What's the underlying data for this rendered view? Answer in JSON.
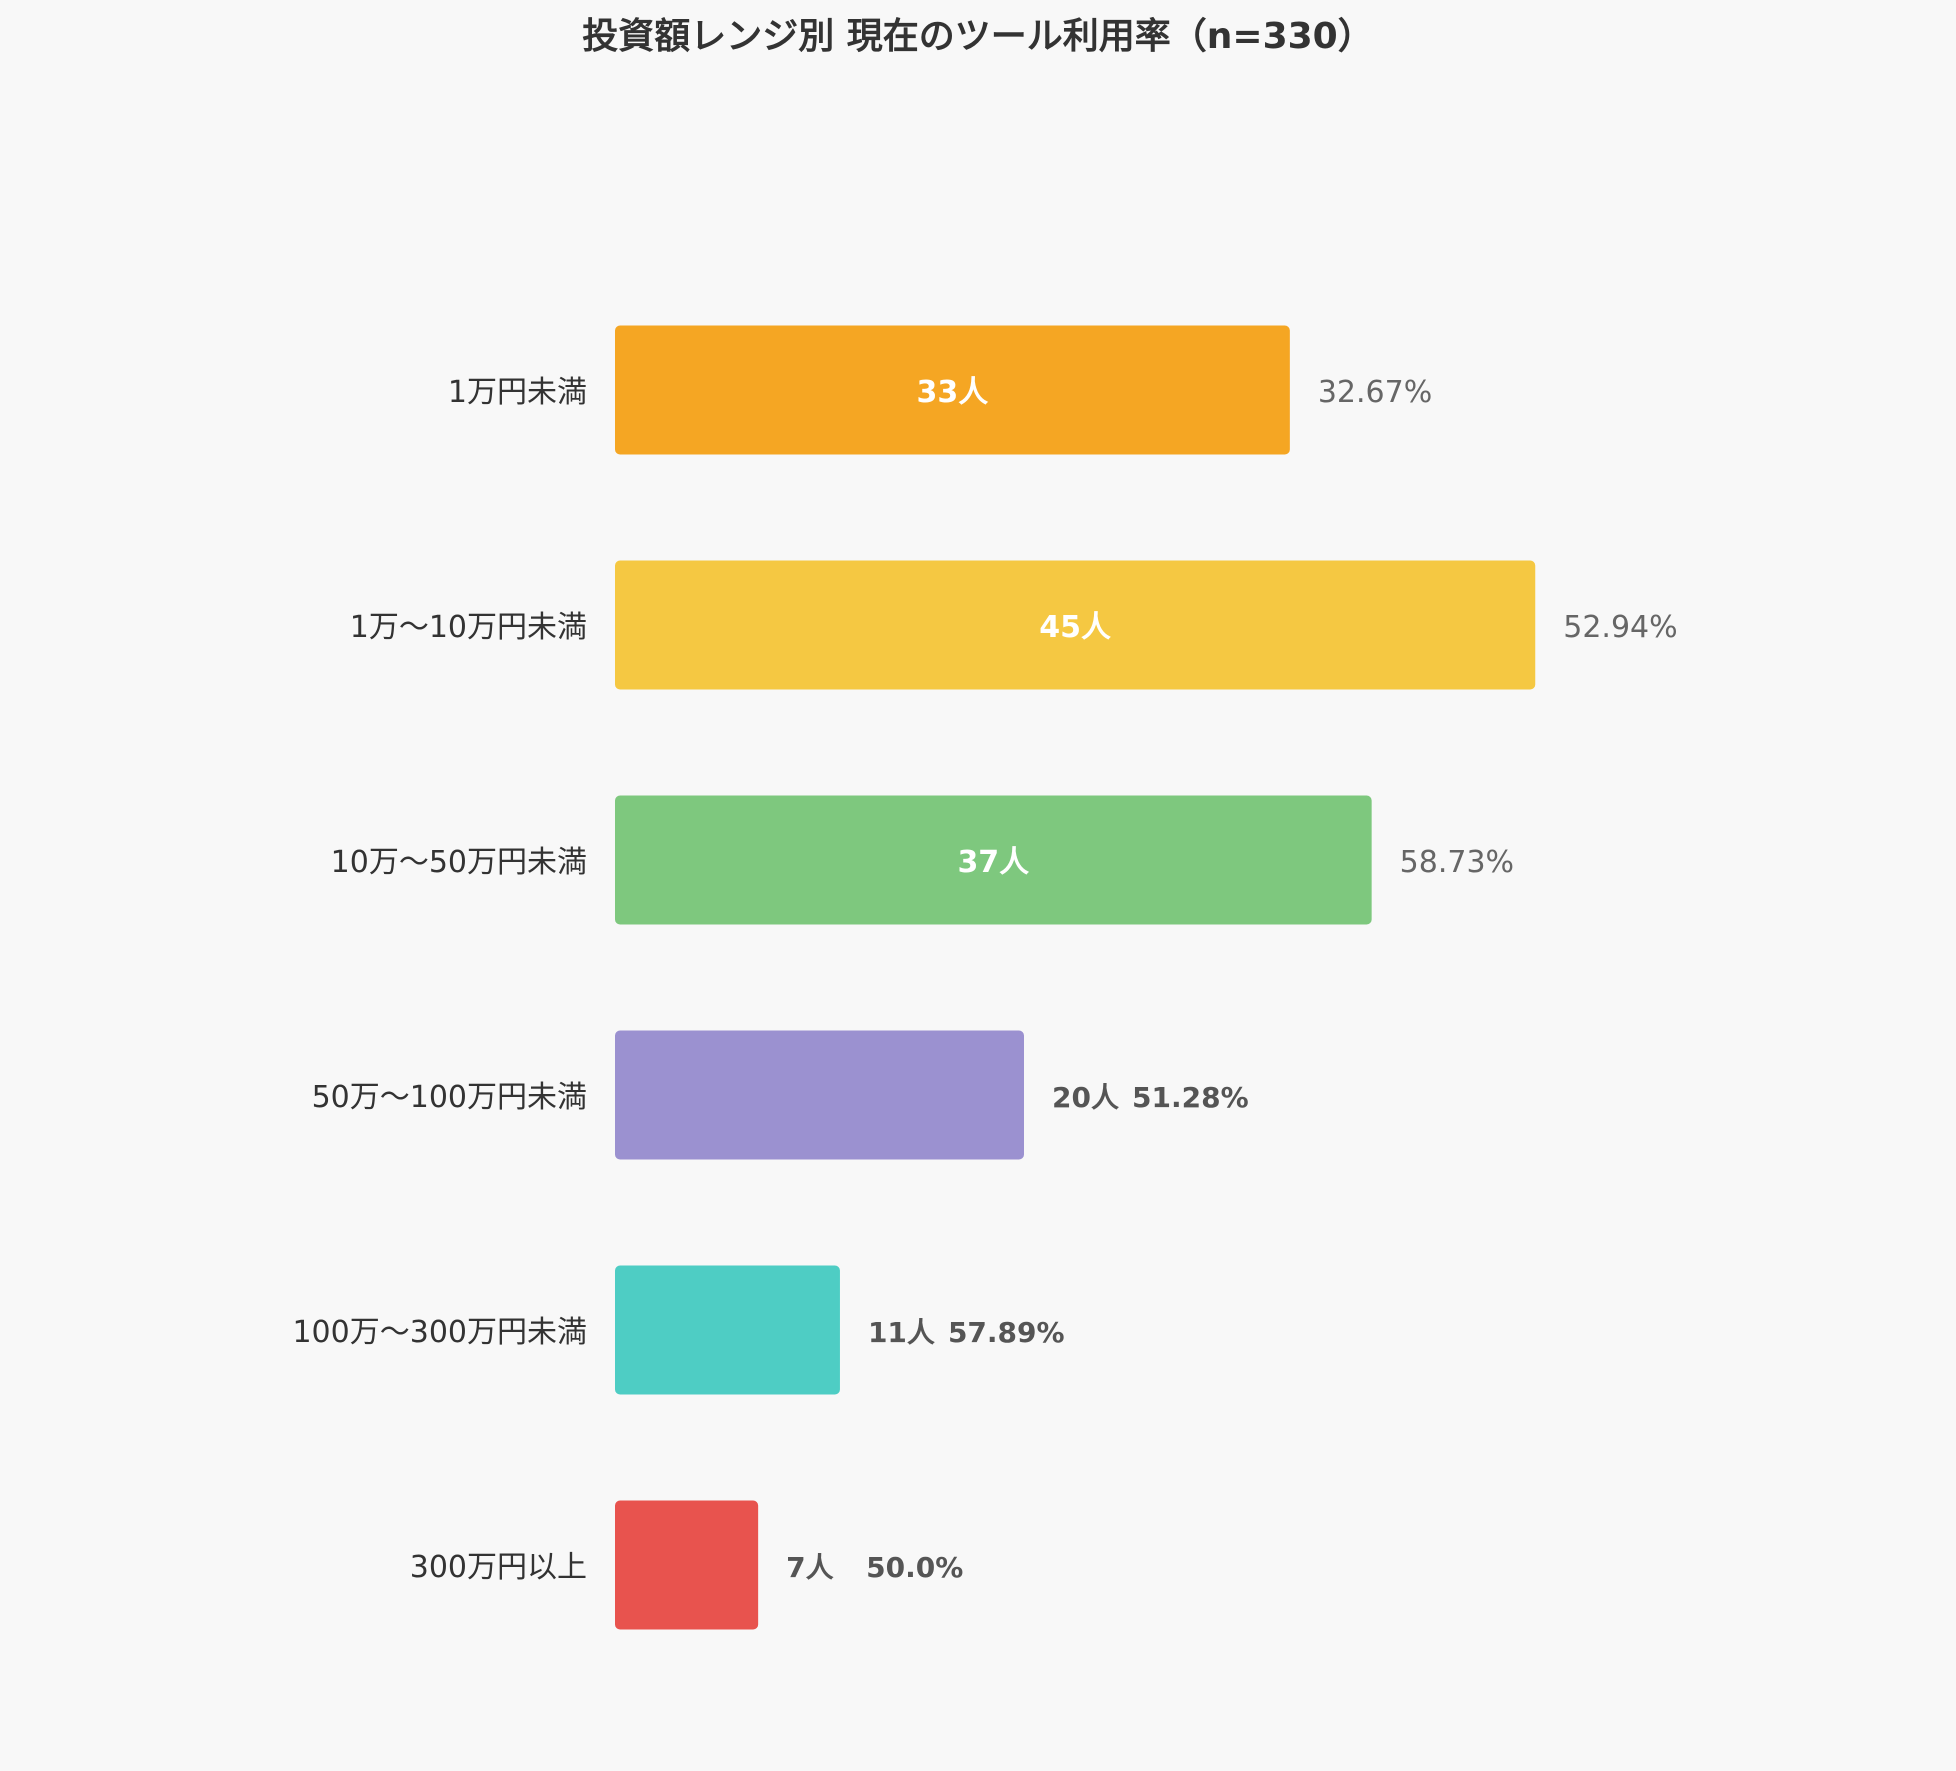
{
  "chart_data": {
    "type": "bar",
    "orientation": "horizontal",
    "title": "投資額レンジ別 現在のツール利用率（n=330）",
    "xlabel": "",
    "ylabel": "",
    "grid": false,
    "categories": [
      "1万円未満",
      "1万〜10万円未満",
      "10万〜50万円未満",
      "50万〜100万円未満",
      "100万〜300万円未満",
      "300万円以上"
    ],
    "values": [
      33,
      45,
      37,
      20,
      11,
      7
    ],
    "count_labels": [
      "33人",
      "45人",
      "37人",
      "20人",
      "11人",
      "7人"
    ],
    "rate_labels": [
      "32.67%",
      "52.94%",
      "58.73%",
      "51.28%",
      "57.89%",
      "50.0%"
    ],
    "colors": [
      "#f5a623",
      "#f5c842",
      "#7ec87e",
      "#9b91d0",
      "#4ecdc4",
      "#e8534e"
    ]
  }
}
